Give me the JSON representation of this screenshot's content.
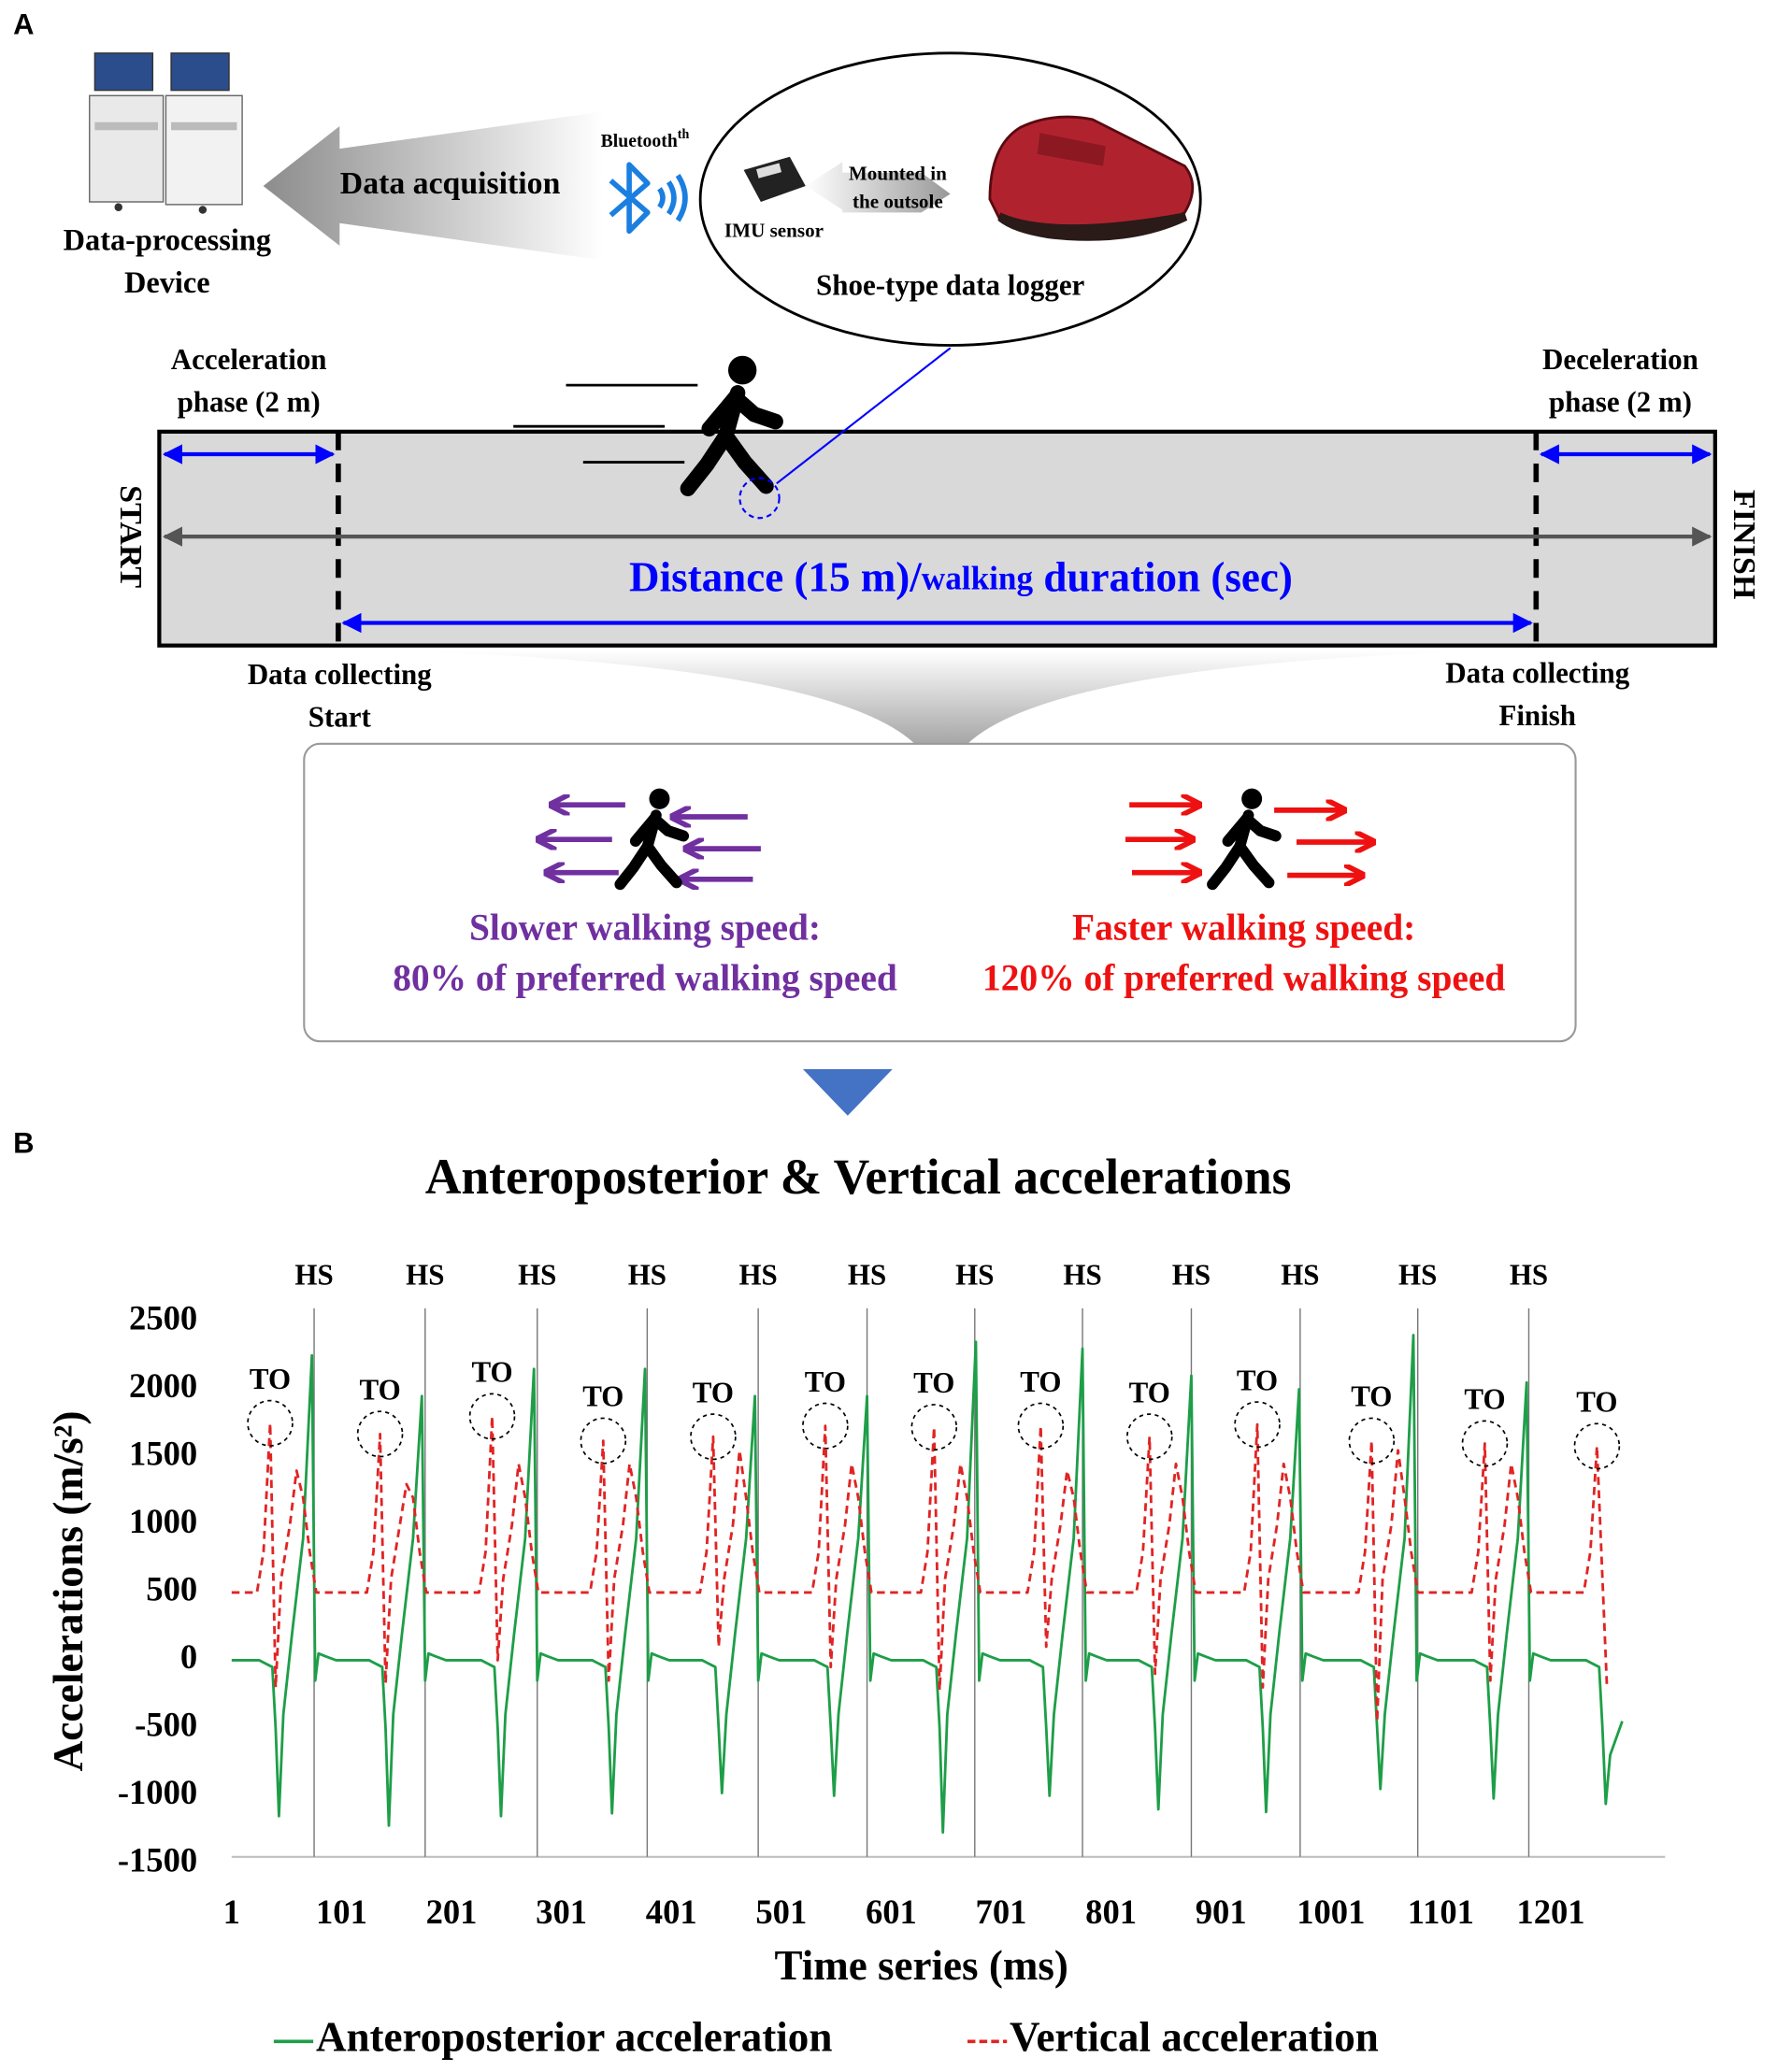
{
  "panel_a": {
    "label": "A",
    "device": [
      "Data-processing",
      "Device"
    ],
    "data_acquisition": "Data acquisition",
    "bluetooth": "Bluetooth",
    "bluetooth_sup": "th",
    "imu_sensor": "IMU sensor",
    "mounted": [
      "Mounted in",
      "the outsole"
    ],
    "logger": "Shoe-type data logger",
    "acceleration_phase": [
      "Acceleration",
      "phase (2 m)"
    ],
    "deceleration_phase": [
      "Deceleration",
      "phase (2 m)"
    ],
    "start": "START",
    "finish": "FINISH",
    "distance": [
      "Distance (15 m)/",
      "walking",
      " duration (sec)"
    ],
    "collect_start": [
      "Data collecting",
      "Start"
    ],
    "collect_finish": [
      "Data collecting",
      "Finish"
    ],
    "slower": [
      "Slower walking speed:",
      "80% of preferred walking speed"
    ],
    "faster": [
      "Faster walking speed:",
      "120% of preferred walking speed"
    ]
  },
  "panel_b_label": "B",
  "chart_data": {
    "type": "line",
    "title": "Anteroposterior & Vertical accelerations",
    "x_label": "Time series (ms)",
    "y_label": "Accelerations (m/s²)",
    "xlim": [
      1,
      1305
    ],
    "xticks": [
      1,
      101,
      201,
      301,
      401,
      501,
      601,
      701,
      801,
      901,
      1001,
      1101,
      1201
    ],
    "ylim": [
      -1500,
      2500
    ],
    "yticks": [
      -1500,
      -1000,
      -500,
      0,
      500,
      1000,
      1500,
      2000,
      2500
    ],
    "series": [
      {
        "name": "Anteroposterior acceleration",
        "color": "#1e9e48",
        "style": "solid",
        "x": [
          1,
          26,
          38,
          41,
          44,
          48,
          56,
          66,
          74,
          77,
          80,
          86,
          96,
          126,
          138,
          141,
          144,
          148,
          156,
          166,
          174,
          177,
          180,
          186,
          196,
          228,
          240,
          243,
          246,
          250,
          258,
          268,
          276,
          279,
          282,
          288,
          298,
          329,
          341,
          344,
          347,
          351,
          359,
          369,
          377,
          380,
          383,
          389,
          399,
          429,
          441,
          444,
          447,
          451,
          459,
          469,
          477,
          480,
          483,
          489,
          499,
          531,
          543,
          546,
          549,
          553,
          561,
          571,
          579,
          582,
          585,
          591,
          601,
          630,
          642,
          645,
          648,
          652,
          660,
          670,
          678,
          681,
          684,
          690,
          700,
          727,
          739,
          742,
          745,
          749,
          757,
          767,
          775,
          778,
          781,
          787,
          797,
          826,
          838,
          841,
          844,
          848,
          856,
          866,
          874,
          877,
          880,
          886,
          896,
          924,
          936,
          939,
          942,
          946,
          954,
          964,
          972,
          975,
          978,
          984,
          994,
          1028,
          1040,
          1043,
          1046,
          1050,
          1058,
          1068,
          1076,
          1079,
          1082,
          1088,
          1098,
          1131,
          1143,
          1146,
          1149,
          1153,
          1161,
          1171,
          1179,
          1182,
          1185,
          1191,
          1201,
          1233,
          1245,
          1248,
          1251,
          1255,
          1266
        ],
        "values": [
          0,
          0,
          -50,
          -500,
          -1150,
          -400,
          200,
          900,
          2250,
          -150,
          50,
          30,
          0,
          0,
          -50,
          -500,
          -1220,
          -400,
          200,
          900,
          1950,
          -150,
          50,
          30,
          0,
          0,
          -50,
          -500,
          -1150,
          -400,
          200,
          900,
          2150,
          -150,
          50,
          30,
          0,
          0,
          -50,
          -500,
          -1130,
          -400,
          200,
          900,
          2150,
          -150,
          50,
          30,
          0,
          0,
          -50,
          -500,
          -980,
          -400,
          200,
          900,
          1950,
          -150,
          50,
          30,
          0,
          0,
          -50,
          -500,
          -1000,
          -400,
          200,
          900,
          1950,
          -150,
          50,
          30,
          0,
          0,
          -50,
          -500,
          -1270,
          -400,
          200,
          900,
          2350,
          -150,
          50,
          30,
          0,
          0,
          -50,
          -500,
          -1000,
          -400,
          200,
          900,
          2300,
          -150,
          50,
          30,
          0,
          0,
          -50,
          -500,
          -1100,
          -400,
          200,
          900,
          2100,
          -150,
          50,
          30,
          0,
          0,
          -50,
          -500,
          -1120,
          -400,
          200,
          900,
          2000,
          -150,
          50,
          30,
          0,
          0,
          -50,
          -500,
          -950,
          -400,
          200,
          900,
          2400,
          -150,
          50,
          30,
          0,
          0,
          -50,
          -500,
          -1020,
          -400,
          200,
          900,
          2050,
          -150,
          50,
          30,
          0,
          0,
          -50,
          -500,
          -1060,
          -700,
          -450
        ]
      },
      {
        "name": "Vertical acceleration",
        "color": "#e02424",
        "style": "dashed",
        "x": [
          1,
          24,
          30,
          36,
          41,
          46,
          54,
          60,
          66,
          72,
          78,
          124,
          130,
          136,
          141,
          146,
          154,
          160,
          166,
          172,
          178,
          226,
          232,
          238,
          243,
          248,
          256,
          262,
          268,
          274,
          280,
          327,
          333,
          339,
          344,
          349,
          357,
          363,
          369,
          375,
          381,
          427,
          433,
          439,
          444,
          449,
          457,
          463,
          469,
          475,
          481,
          529,
          535,
          541,
          546,
          551,
          559,
          565,
          571,
          577,
          583,
          628,
          634,
          640,
          645,
          650,
          658,
          664,
          670,
          676,
          682,
          725,
          731,
          737,
          742,
          747,
          755,
          761,
          767,
          773,
          779,
          824,
          830,
          836,
          841,
          846,
          854,
          860,
          866,
          872,
          878,
          922,
          928,
          934,
          939,
          944,
          952,
          958,
          964,
          970,
          976,
          1026,
          1032,
          1038,
          1043,
          1048,
          1056,
          1062,
          1068,
          1074,
          1080,
          1129,
          1135,
          1141,
          1146,
          1151,
          1159,
          1165,
          1171,
          1177,
          1183,
          1231,
          1237,
          1243,
          1252
        ],
        "values": [
          500,
          500,
          800,
          1750,
          -200,
          600,
          1000,
          1400,
          1200,
          800,
          500,
          500,
          800,
          1670,
          -170,
          600,
          1000,
          1300,
          1200,
          800,
          500,
          500,
          800,
          1800,
          0,
          600,
          1000,
          1450,
          1200,
          800,
          500,
          500,
          800,
          1620,
          -150,
          600,
          1000,
          1450,
          1200,
          800,
          500,
          500,
          800,
          1650,
          100,
          600,
          1000,
          1550,
          1200,
          800,
          500,
          500,
          800,
          1730,
          -50,
          600,
          1000,
          1450,
          1200,
          800,
          500,
          500,
          800,
          1720,
          -220,
          600,
          1000,
          1450,
          1200,
          800,
          500,
          500,
          800,
          1730,
          100,
          600,
          1000,
          1400,
          1200,
          800,
          500,
          500,
          800,
          1650,
          -100,
          600,
          1000,
          1450,
          1200,
          800,
          500,
          500,
          800,
          1740,
          -200,
          600,
          1000,
          1450,
          1200,
          800,
          500,
          500,
          800,
          1620,
          -450,
          600,
          1000,
          1550,
          1200,
          800,
          500,
          500,
          800,
          1600,
          -150,
          600,
          1000,
          1450,
          1200,
          800,
          500,
          500,
          800,
          1580,
          -180
        ]
      }
    ],
    "hs_markers": {
      "label": "HS",
      "x": [
        76,
        177,
        279,
        379,
        480,
        579,
        677,
        775,
        874,
        973,
        1080,
        1181
      ]
    },
    "to_markers": {
      "label": "TO",
      "x": [
        36,
        136,
        238,
        339,
        439,
        541,
        640,
        737,
        836,
        934,
        1038,
        1141,
        1243
      ],
      "y": [
        1750,
        1670,
        1800,
        1620,
        1650,
        1730,
        1720,
        1730,
        1650,
        1740,
        1620,
        1600,
        1580
      ]
    }
  }
}
